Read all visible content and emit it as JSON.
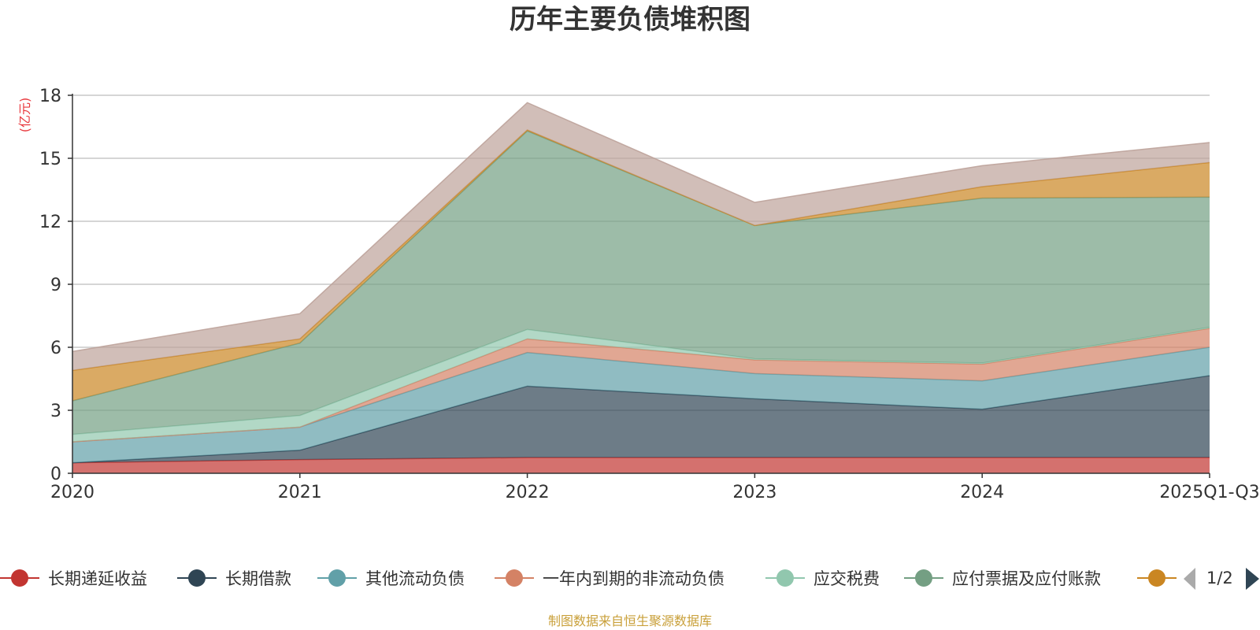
{
  "chart_data": {
    "type": "area",
    "stacked": true,
    "title": "历年主要负债堆积图",
    "ylabel": "(亿元)",
    "xlabel": "",
    "ylim": [
      0,
      18
    ],
    "yticks": [
      0,
      3,
      6,
      9,
      12,
      15,
      18
    ],
    "categories": [
      "2020",
      "2021",
      "2022",
      "2023",
      "2024",
      "2025Q1-Q3"
    ],
    "grid": true,
    "series": [
      {
        "name": "长期递延收益",
        "color": "#c23531",
        "values": [
          0.5,
          0.65,
          0.75,
          0.75,
          0.75,
          0.75
        ]
      },
      {
        "name": "长期借款",
        "color": "#2f4554",
        "values": [
          0.0,
          0.45,
          3.4,
          2.8,
          2.3,
          3.9
        ]
      },
      {
        "name": "其他流动负债",
        "color": "#61a0a8",
        "values": [
          1.0,
          1.1,
          1.6,
          1.2,
          1.35,
          1.35
        ]
      },
      {
        "name": "一年内到期的非流动负债",
        "color": "#d48265",
        "values": [
          0.0,
          0.0,
          0.65,
          0.65,
          0.8,
          0.9
        ]
      },
      {
        "name": "应交税费",
        "color": "#91c7ae",
        "values": [
          0.35,
          0.55,
          0.45,
          0.05,
          0.05,
          0.05
        ]
      },
      {
        "name": "应付票据及应付账款",
        "color": "#749f83",
        "values": [
          1.6,
          3.45,
          9.45,
          6.35,
          7.85,
          6.2
        ]
      },
      {
        "name": "",
        "color": "#ca8622",
        "values": [
          1.45,
          0.2,
          0.05,
          0.0,
          0.55,
          1.65
        ]
      },
      {
        "name": "",
        "color": "#bda29a",
        "values": [
          0.9,
          1.2,
          1.3,
          1.1,
          1.0,
          0.95
        ]
      }
    ],
    "legend": {
      "position": "bottom",
      "page": "1/2"
    }
  },
  "source_note": "制图数据来自恒生聚源数据库"
}
